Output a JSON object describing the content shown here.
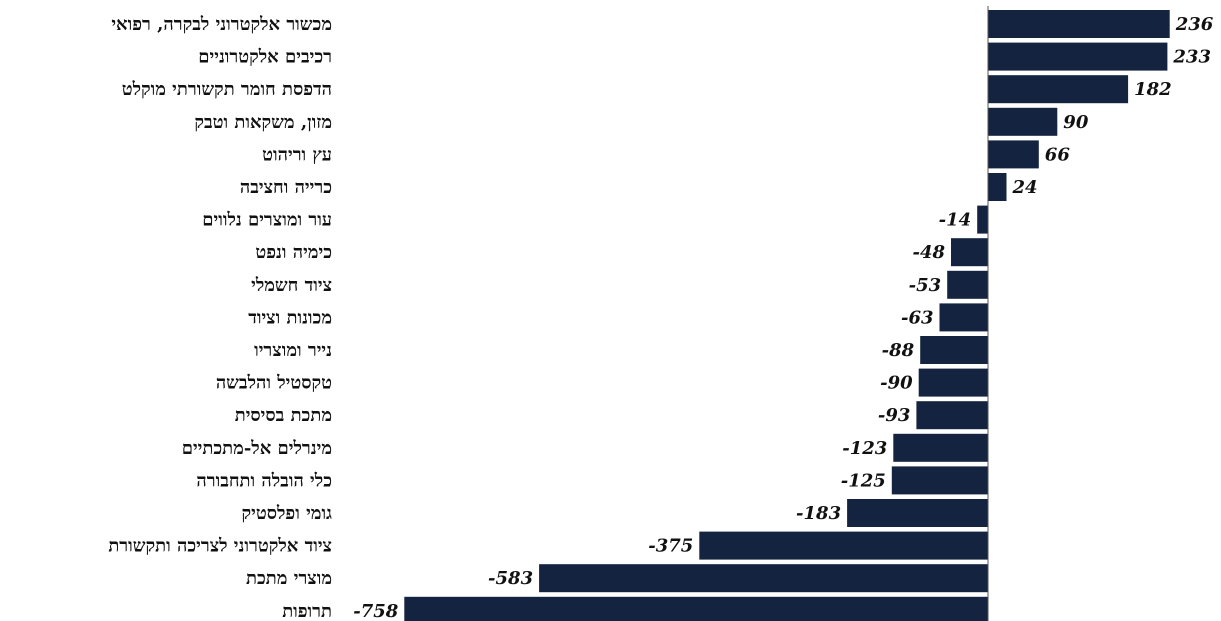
{
  "chart_data": {
    "type": "bar",
    "orientation": "horizontal",
    "title": "",
    "xlabel": "",
    "ylabel": "",
    "xlim": [
      -758,
      236
    ],
    "grid": false,
    "legend": "none",
    "bar_color": "#14233f",
    "categories": [
      "מכשור אלקטרוני לבקרה, רפואי",
      "רכיבים אלקטרוניים",
      "הדפסת חומר תקשורתי מוקלט",
      "מזון, משקאות וטבק",
      "עץ וריהוט",
      "כרייה וחציבה",
      "עור ומוצרים נלווים",
      "כימיה ונפט",
      "ציוד חשמלי",
      "מכונות וציוד",
      "נייר ומוצריו",
      "טקסטיל והלבשה",
      "מתכת בסיסית",
      "מינרלים אל-מתכתיים",
      "כלי הובלה ותחבורה",
      "גומי ופלסטיק",
      "ציוד אלקטרוני לצריכה ותקשורת",
      "מוצרי מתכת",
      "תרופות"
    ],
    "values": [
      236,
      233,
      182,
      90,
      66,
      24,
      -14,
      -48,
      -53,
      -63,
      -88,
      -90,
      -93,
      -123,
      -125,
      -183,
      -375,
      -583,
      -758
    ],
    "value_labels": [
      "236",
      "233",
      "182",
      "90",
      "66",
      "24",
      "-14",
      "-48",
      "-53",
      "-63",
      "-88",
      "-90",
      "-93",
      "-123",
      "-125",
      "-183",
      "-375",
      "-583",
      "-758"
    ]
  }
}
